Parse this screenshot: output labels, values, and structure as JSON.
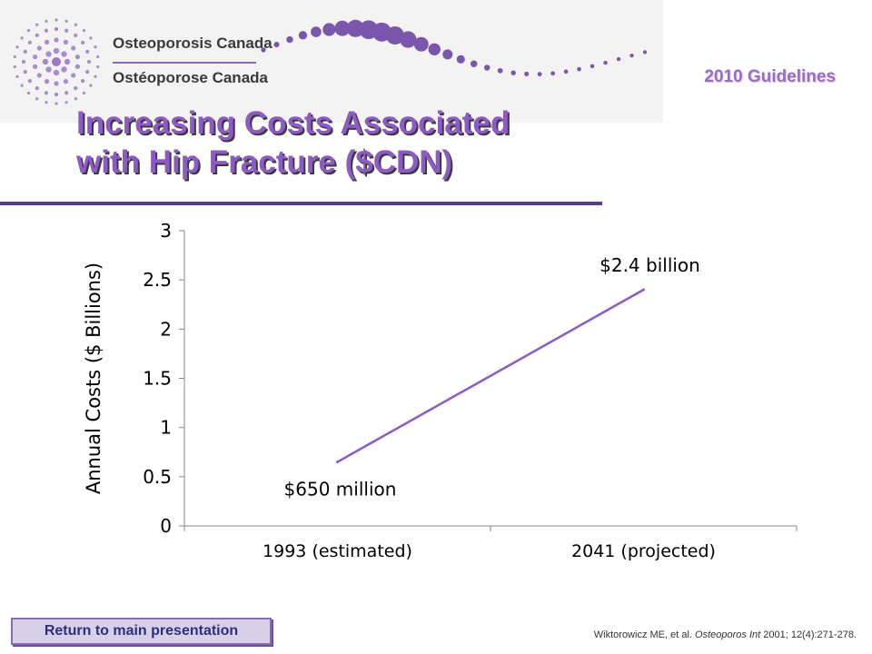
{
  "header": {
    "logo_name_en": "Osteoporosis Canada",
    "logo_name_fr": "Ostéoporose Canada",
    "guidelines_label": "2010 Guidelines"
  },
  "slide": {
    "title_line1": "Increasing Costs Associated",
    "title_line2": "with Hip Fracture ($CDN)"
  },
  "colors": {
    "brand_purple": "#8e5ac4",
    "line_color": "#8e5ac4",
    "rule_color": "#5c3d8a",
    "button_fill": "#d8cfe8"
  },
  "chart_data": {
    "type": "line",
    "title": "",
    "xlabel": "",
    "ylabel": "Annual Costs ($ Billions)",
    "categories": [
      "1993 (estimated)",
      "2041 (projected)"
    ],
    "series": [
      {
        "values": [
          0.65,
          2.4
        ]
      }
    ],
    "data_labels": [
      "$650 million",
      "$2.4 billion"
    ],
    "ylim": [
      0,
      3
    ],
    "yticks": [
      0,
      0.5,
      1,
      1.5,
      2,
      2.5,
      3
    ],
    "ytick_labels": [
      "0",
      "0.5",
      "1",
      "1.5",
      "2",
      "2.5",
      "3"
    ],
    "grid": false,
    "legend": "none"
  },
  "footer": {
    "return_button_label": "Return to main presentation",
    "citation_authors": "Wiktorowicz ME, et al. ",
    "citation_journal": "Osteoporos Int",
    "citation_rest": " 2001; 12(4):271-278."
  }
}
